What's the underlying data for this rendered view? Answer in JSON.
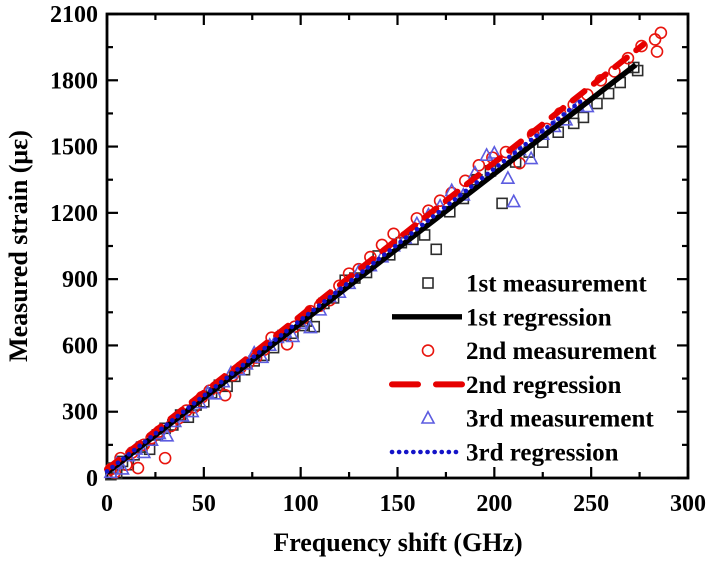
{
  "chart_data": {
    "type": "scatter",
    "title": "",
    "xlabel": "Frequency shift (GHz)",
    "ylabel": "Measured strain (με)",
    "xlim": [
      0,
      300
    ],
    "ylim": [
      0,
      2100
    ],
    "x_major_ticks": [
      0,
      50,
      100,
      150,
      200,
      250,
      300
    ],
    "x_minor_ticks": [
      25,
      75,
      125,
      175,
      225,
      275
    ],
    "y_major_ticks": [
      0,
      300,
      600,
      900,
      1200,
      1500,
      1800,
      2100
    ],
    "y_minor_ticks": [
      150,
      450,
      750,
      1050,
      1350,
      1650,
      1950
    ],
    "grid": false,
    "background": "#ffffff",
    "axis_color": "#000000",
    "legend_position": "inside-right-middle-no-frame",
    "series": [
      {
        "id": "m1",
        "label": "1st measurement",
        "kind": "scatter",
        "marker": "square",
        "color": "#2d2d2d",
        "points": [
          [
            2,
            15
          ],
          [
            3,
            45
          ],
          [
            5,
            20
          ],
          [
            8,
            75
          ],
          [
            11,
            60
          ],
          [
            14,
            105
          ],
          [
            18,
            140
          ],
          [
            22,
            130
          ],
          [
            26,
            195
          ],
          [
            30,
            225
          ],
          [
            34,
            240
          ],
          [
            38,
            285
          ],
          [
            42,
            275
          ],
          [
            46,
            330
          ],
          [
            50,
            345
          ],
          [
            54,
            385
          ],
          [
            58,
            420
          ],
          [
            62,
            415
          ],
          [
            66,
            460
          ],
          [
            71,
            490
          ],
          [
            76,
            530
          ],
          [
            81,
            555
          ],
          [
            86,
            590
          ],
          [
            91,
            645
          ],
          [
            96,
            655
          ],
          [
            101,
            690
          ],
          [
            103,
            710
          ],
          [
            107,
            685
          ],
          [
            112,
            790
          ],
          [
            117,
            815
          ],
          [
            123,
            895
          ],
          [
            128,
            905
          ],
          [
            134,
            930
          ],
          [
            140,
            1005
          ],
          [
            146,
            1010
          ],
          [
            152,
            1065
          ],
          [
            158,
            1080
          ],
          [
            164,
            1100
          ],
          [
            170,
            1035
          ],
          [
            177,
            1205
          ],
          [
            184,
            1265
          ],
          [
            191,
            1350
          ],
          [
            198,
            1390
          ],
          [
            204,
            1243
          ],
          [
            211,
            1430
          ],
          [
            218,
            1475
          ],
          [
            225,
            1520
          ],
          [
            233,
            1565
          ],
          [
            241,
            1605
          ],
          [
            246,
            1632
          ],
          [
            253,
            1695
          ],
          [
            259,
            1740
          ],
          [
            265,
            1790
          ],
          [
            272,
            1858
          ],
          [
            274,
            1844
          ]
        ]
      },
      {
        "id": "r1",
        "label": "1st regression",
        "kind": "line",
        "style": "solid",
        "color": "#000000",
        "line": [
          [
            0,
            25
          ],
          [
            273,
            1870
          ]
        ]
      },
      {
        "id": "m2",
        "label": "2nd measurement",
        "kind": "scatter",
        "marker": "circle",
        "color": "#e8140d",
        "points": [
          [
            2,
            40
          ],
          [
            4,
            25
          ],
          [
            7,
            90
          ],
          [
            10,
            60
          ],
          [
            13,
            115
          ],
          [
            16,
            45
          ],
          [
            19,
            150
          ],
          [
            23,
            180
          ],
          [
            27,
            210
          ],
          [
            30,
            90
          ],
          [
            33,
            235
          ],
          [
            37,
            270
          ],
          [
            41,
            305
          ],
          [
            45,
            320
          ],
          [
            49,
            365
          ],
          [
            53,
            395
          ],
          [
            57,
            410
          ],
          [
            61,
            375
          ],
          [
            65,
            465
          ],
          [
            69,
            500
          ],
          [
            73,
            520
          ],
          [
            77,
            545
          ],
          [
            81,
            580
          ],
          [
            85,
            635
          ],
          [
            89,
            640
          ],
          [
            93,
            605
          ],
          [
            97,
            685
          ],
          [
            101,
            720
          ],
          [
            105,
            755
          ],
          [
            110,
            780
          ],
          [
            115,
            805
          ],
          [
            120,
            870
          ],
          [
            125,
            925
          ],
          [
            130,
            945
          ],
          [
            136,
            1000
          ],
          [
            142,
            1055
          ],
          [
            148,
            1105
          ],
          [
            154,
            1090
          ],
          [
            160,
            1175
          ],
          [
            166,
            1210
          ],
          [
            172,
            1255
          ],
          [
            178,
            1290
          ],
          [
            185,
            1345
          ],
          [
            192,
            1415
          ],
          [
            199,
            1450
          ],
          [
            206,
            1475
          ],
          [
            213,
            1425
          ],
          [
            220,
            1555
          ],
          [
            227,
            1580
          ],
          [
            234,
            1650
          ],
          [
            241,
            1690
          ],
          [
            248,
            1735
          ],
          [
            255,
            1800
          ],
          [
            262,
            1840
          ],
          [
            269,
            1900
          ],
          [
            276,
            1955
          ],
          [
            283,
            1985
          ],
          [
            284,
            1930
          ],
          [
            286,
            2015
          ]
        ]
      },
      {
        "id": "r2",
        "label": "2nd regression",
        "kind": "line",
        "style": "dashed",
        "color": "#e60000",
        "line": [
          [
            0,
            40
          ],
          [
            277,
            1962
          ]
        ]
      },
      {
        "id": "m3",
        "label": "3rd measurement",
        "kind": "scatter",
        "marker": "triangle",
        "color": "#5c5ce0",
        "points": [
          [
            2,
            25
          ],
          [
            5,
            65
          ],
          [
            8,
            40
          ],
          [
            11,
            100
          ],
          [
            15,
            130
          ],
          [
            19,
            115
          ],
          [
            23,
            170
          ],
          [
            27,
            200
          ],
          [
            31,
            190
          ],
          [
            35,
            255
          ],
          [
            39,
            280
          ],
          [
            44,
            300
          ],
          [
            48,
            340
          ],
          [
            52,
            385
          ],
          [
            56,
            380
          ],
          [
            60,
            435
          ],
          [
            64,
            475
          ],
          [
            68,
            490
          ],
          [
            72,
            515
          ],
          [
            76,
            565
          ],
          [
            80,
            545
          ],
          [
            84,
            600
          ],
          [
            88,
            635
          ],
          [
            92,
            660
          ],
          [
            96,
            640
          ],
          [
            100,
            700
          ],
          [
            105,
            680
          ],
          [
            110,
            760
          ],
          [
            115,
            820
          ],
          [
            120,
            840
          ],
          [
            125,
            880
          ],
          [
            130,
            935
          ],
          [
            136,
            960
          ],
          [
            142,
            1000
          ],
          [
            148,
            1050
          ],
          [
            154,
            1085
          ],
          [
            160,
            1150
          ],
          [
            166,
            1190
          ],
          [
            172,
            1230
          ],
          [
            178,
            1300
          ],
          [
            184,
            1280
          ],
          [
            190,
            1380
          ],
          [
            196,
            1460
          ],
          [
            200,
            1470
          ],
          [
            207,
            1356
          ],
          [
            210,
            1250
          ],
          [
            213,
            1485
          ],
          [
            219,
            1445
          ],
          [
            225,
            1555
          ],
          [
            231,
            1590
          ],
          [
            237,
            1620
          ],
          [
            243,
            1685
          ],
          [
            248,
            1680
          ]
        ]
      },
      {
        "id": "r3",
        "label": "3rd regression",
        "kind": "line",
        "style": "dotted",
        "color": "#1414c8",
        "line": [
          [
            0,
            30
          ],
          [
            247,
            1722
          ]
        ]
      }
    ]
  }
}
